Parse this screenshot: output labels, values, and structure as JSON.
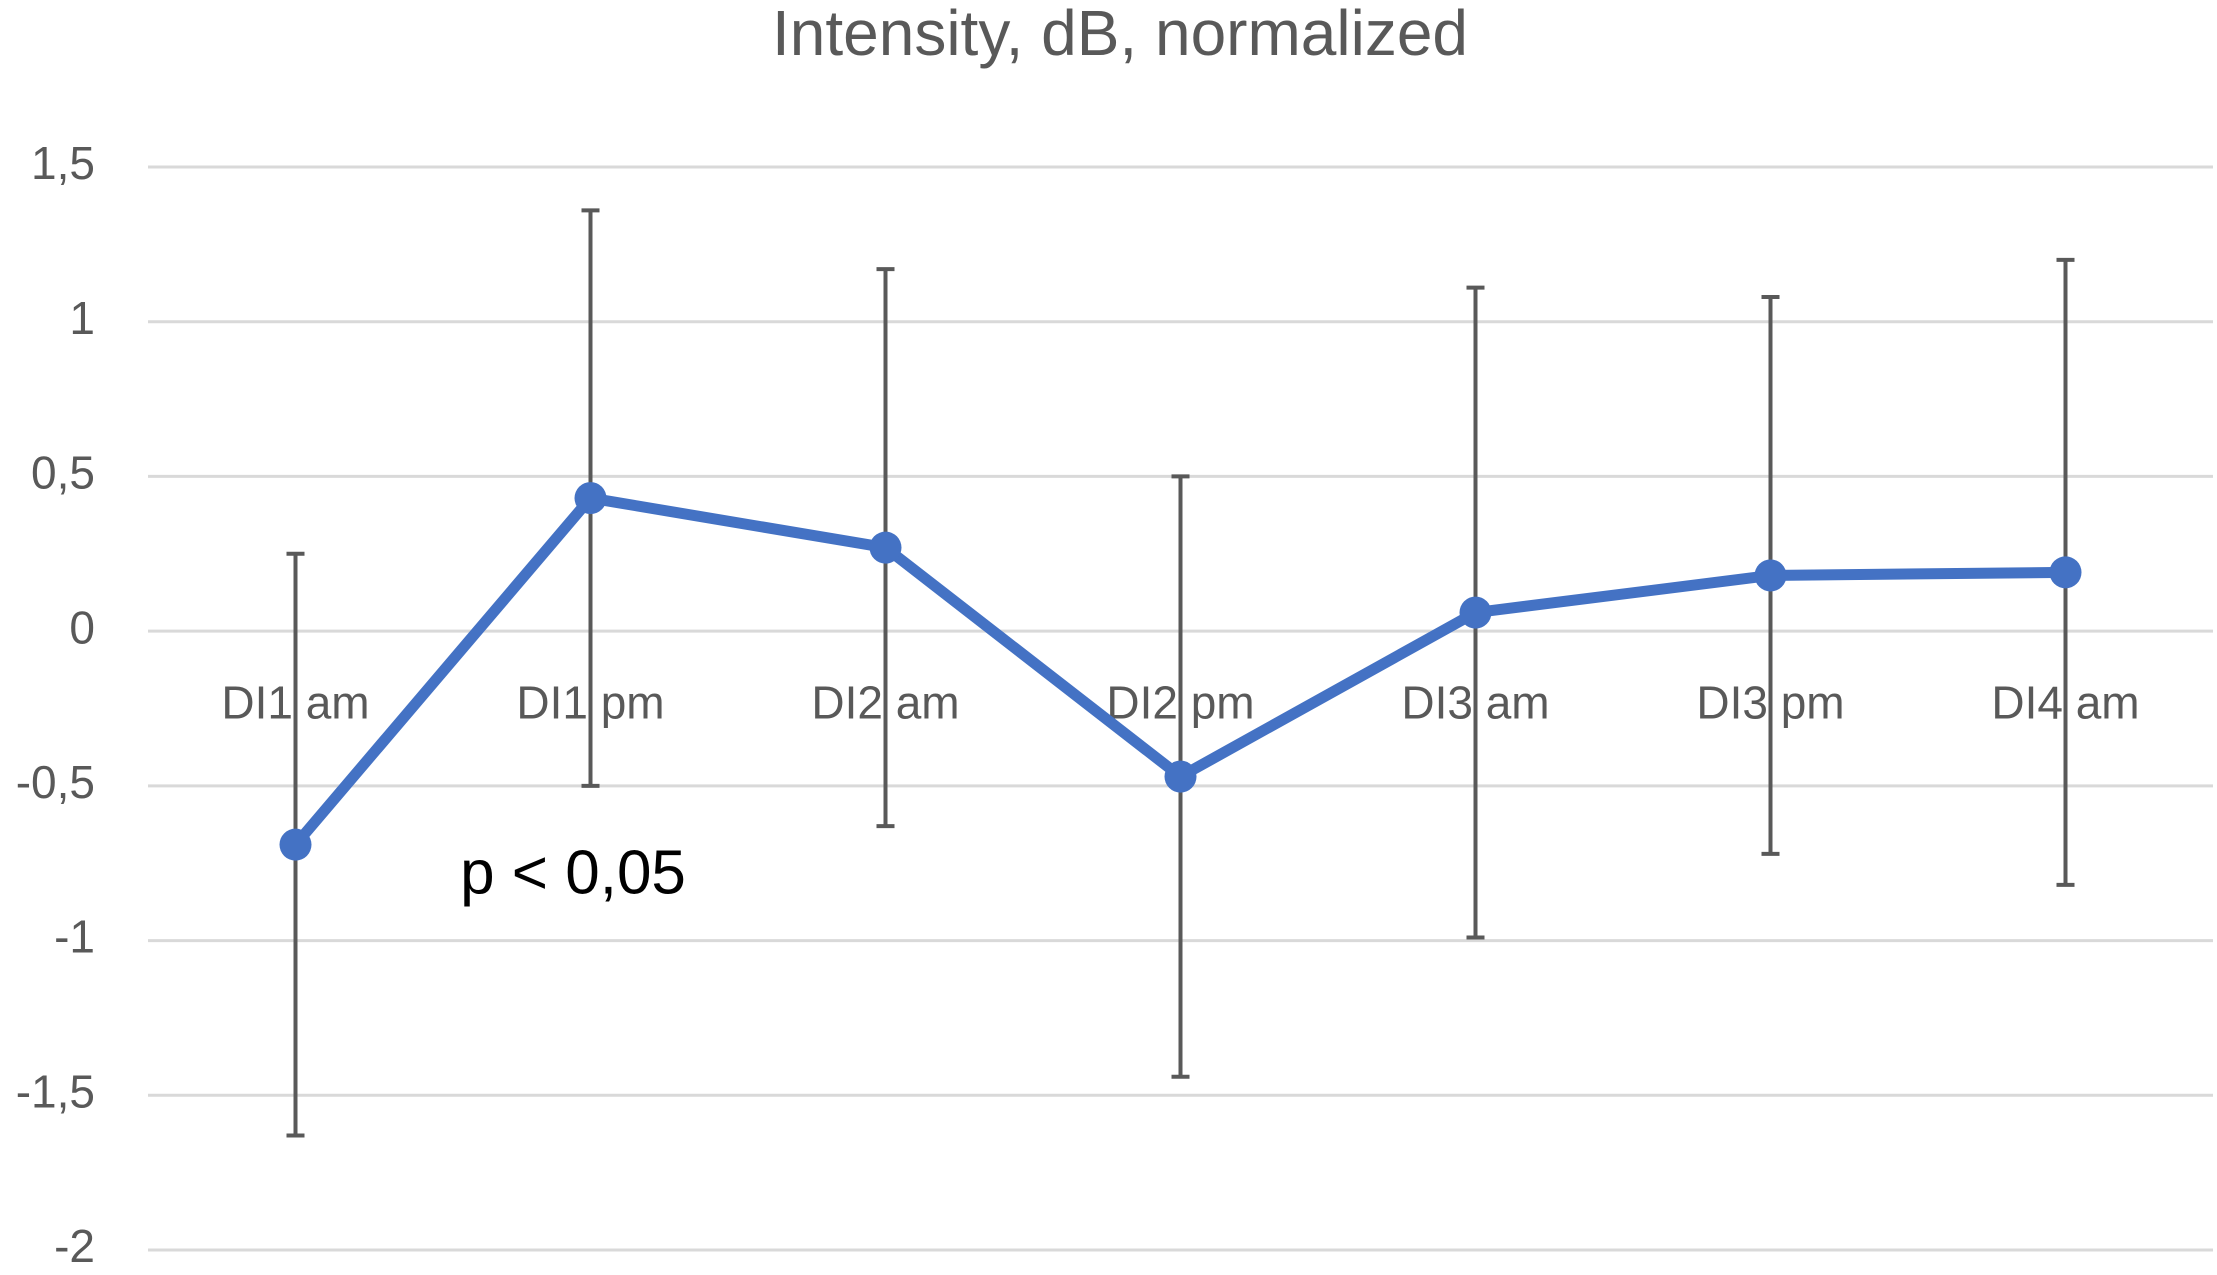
{
  "chart_data": {
    "type": "line",
    "title": "Intensity, dB, normalized",
    "categories": [
      "DI1 am",
      "DI1 pm",
      "DI2 am",
      "DI2 pm",
      "DI3 am",
      "DI3 pm",
      "DI4 am"
    ],
    "values": [
      -0.69,
      0.43,
      0.27,
      -0.47,
      0.06,
      0.18,
      0.19
    ],
    "errors": [
      0.94,
      0.93,
      0.9,
      0.97,
      1.05,
      0.9,
      1.01
    ],
    "color": "#4472c4",
    "error_color": "#595959",
    "ylim": [
      -2,
      1.5
    ],
    "yticks": [
      -2,
      {
        "value": -1.5,
        "label": "-1,5"
      },
      -1,
      {
        "value": -0.5,
        "label": "-0,5"
      },
      0,
      {
        "value": 0.5,
        "label": "0,5"
      },
      1,
      {
        "value": 1.5,
        "label": "1,5"
      }
    ],
    "grid": true,
    "annotation": "p < 0,05"
  }
}
